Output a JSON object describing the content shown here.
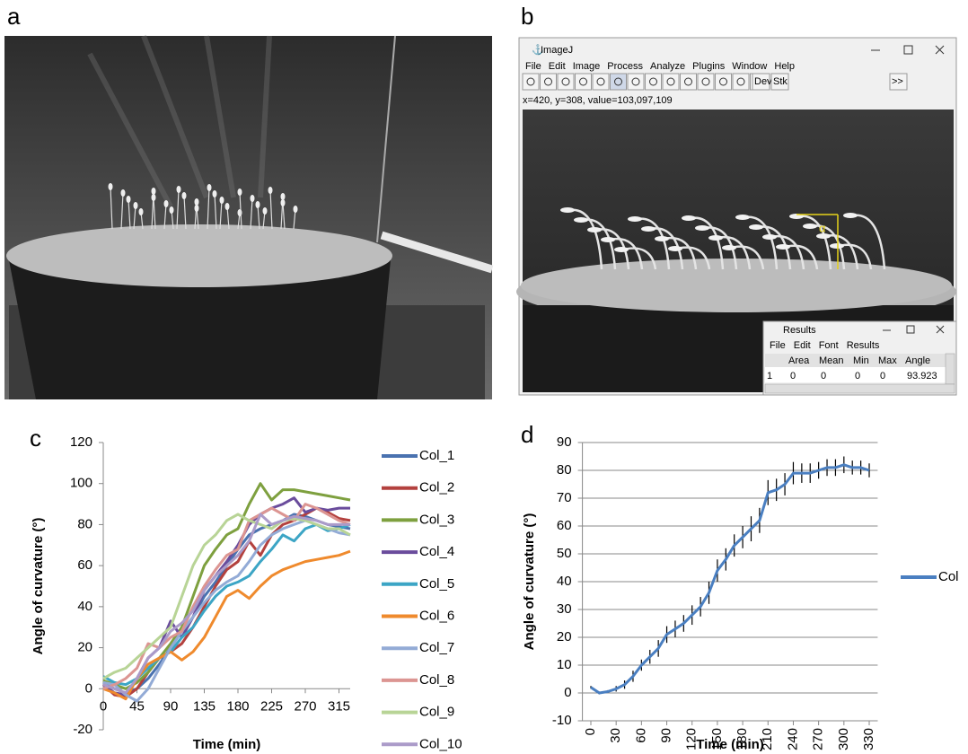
{
  "panel_labels": [
    "a",
    "b",
    "c",
    "d"
  ],
  "imagej": {
    "title": "ImageJ",
    "menu": [
      "File",
      "Edit",
      "Image",
      "Process",
      "Analyze",
      "Plugins",
      "Window",
      "Help"
    ],
    "toolbar": [
      "Dev",
      "Stk",
      ">>"
    ],
    "status": "x=420, y=308, value=103,097,109",
    "angle_label": "α",
    "results": {
      "title": "Results",
      "menu": [
        "File",
        "Edit",
        "Font",
        "Results"
      ],
      "columns": [
        "Area",
        "Mean",
        "Min",
        "Max",
        "Angle"
      ],
      "rows": [
        [
          "1",
          "0",
          "0",
          "0",
          "0",
          "93.923"
        ]
      ]
    }
  },
  "chart_data": [
    {
      "type": "line",
      "x_label": "Time (min)",
      "y_label": "Angle of curvature (°)",
      "x": [
        0,
        15,
        30,
        45,
        60,
        75,
        90,
        105,
        120,
        135,
        150,
        165,
        180,
        195,
        210,
        225,
        240,
        255,
        270,
        285,
        300,
        315,
        330
      ],
      "xlim": [
        0,
        330
      ],
      "ylim": [
        -20,
        120
      ],
      "xticks": [
        0,
        45,
        90,
        135,
        180,
        225,
        270,
        315
      ],
      "yticks": [
        -20,
        0,
        20,
        40,
        60,
        80,
        100,
        120
      ],
      "grid": false,
      "legend": "right",
      "series": [
        {
          "name": "Col_1",
          "color": "#4a72b0",
          "values": [
            3,
            0,
            -2,
            0,
            5,
            12,
            20,
            28,
            35,
            45,
            52,
            60,
            68,
            75,
            78,
            80,
            82,
            85,
            84,
            82,
            80,
            79,
            78
          ]
        },
        {
          "name": "Col_2",
          "color": "#b3413e",
          "values": [
            2,
            -3,
            -4,
            0,
            8,
            15,
            18,
            22,
            30,
            40,
            50,
            58,
            62,
            72,
            65,
            75,
            80,
            82,
            85,
            88,
            86,
            83,
            82
          ]
        },
        {
          "name": "Col_3",
          "color": "#7ea03f",
          "values": [
            4,
            2,
            0,
            3,
            8,
            15,
            22,
            30,
            45,
            60,
            68,
            75,
            78,
            90,
            100,
            92,
            97,
            97,
            96,
            95,
            94,
            93,
            92
          ]
        },
        {
          "name": "Col_4",
          "color": "#6a4c9c",
          "values": [
            2,
            -2,
            -3,
            5,
            15,
            20,
            33,
            25,
            35,
            48,
            55,
            62,
            70,
            80,
            85,
            88,
            90,
            93,
            86,
            88,
            87,
            88,
            88
          ]
        },
        {
          "name": "Col_5",
          "color": "#3ca5c5",
          "values": [
            6,
            3,
            2,
            5,
            10,
            15,
            18,
            25,
            30,
            38,
            45,
            50,
            52,
            55,
            62,
            68,
            75,
            72,
            78,
            80,
            77,
            78,
            80
          ]
        },
        {
          "name": "Col_6",
          "color": "#ef8a2d",
          "values": [
            0,
            -2,
            -5,
            5,
            12,
            15,
            18,
            14,
            18,
            25,
            35,
            45,
            48,
            44,
            50,
            55,
            58,
            60,
            62,
            63,
            64,
            65,
            67
          ]
        },
        {
          "name": "Col_7",
          "color": "#93abd6",
          "values": [
            3,
            2,
            -3,
            -6,
            0,
            10,
            20,
            28,
            35,
            42,
            48,
            52,
            55,
            62,
            70,
            75,
            78,
            80,
            82,
            80,
            78,
            76,
            75
          ]
        },
        {
          "name": "Col_8",
          "color": "#dc9592",
          "values": [
            0,
            2,
            5,
            10,
            22,
            20,
            25,
            28,
            40,
            50,
            58,
            65,
            68,
            82,
            85,
            88,
            85,
            82,
            90,
            88,
            85,
            82,
            80
          ]
        },
        {
          "name": "Col_9",
          "color": "#b8d496",
          "values": [
            5,
            8,
            10,
            15,
            20,
            25,
            30,
            45,
            60,
            70,
            75,
            82,
            85,
            82,
            80,
            78,
            82,
            83,
            82,
            80,
            78,
            78,
            75
          ]
        },
        {
          "name": "Col_10",
          "color": "#ab9bc9",
          "values": [
            2,
            0,
            -2,
            5,
            15,
            20,
            28,
            32,
            38,
            48,
            55,
            60,
            65,
            72,
            85,
            80,
            82,
            84,
            83,
            82,
            80,
            80,
            80
          ]
        }
      ]
    },
    {
      "type": "line",
      "x_label": "Time (min)",
      "y_label": "Angle of curvature (°)",
      "x": [
        0,
        10,
        20,
        30,
        40,
        50,
        60,
        70,
        80,
        90,
        100,
        110,
        120,
        130,
        140,
        150,
        160,
        170,
        180,
        190,
        200,
        210,
        220,
        230,
        240,
        250,
        260,
        270,
        280,
        290,
        300,
        310,
        320,
        330
      ],
      "xlim": [
        -10,
        340
      ],
      "ylim": [
        -10,
        90
      ],
      "xticks": [
        0,
        30,
        60,
        90,
        120,
        150,
        180,
        210,
        240,
        270,
        300,
        330
      ],
      "yticks": [
        -10,
        0,
        10,
        20,
        30,
        40,
        50,
        60,
        70,
        80,
        90
      ],
      "xtick_rotation": -90,
      "grid": true,
      "legend": "right",
      "series": [
        {
          "name": "Col",
          "color": "#4a7fc1",
          "values": [
            2,
            0,
            0.5,
            1.5,
            3,
            6,
            10,
            13,
            16,
            21,
            23,
            25,
            28,
            31,
            36,
            44,
            48,
            53,
            56,
            59,
            62,
            72,
            73,
            75,
            79,
            79,
            79,
            80,
            81,
            81,
            82,
            81,
            81,
            80
          ],
          "errors": [
            0.5,
            0.5,
            0.5,
            1,
            1.5,
            2,
            2,
            2.5,
            3,
            3,
            3,
            3,
            3.5,
            3.5,
            4,
            4,
            4,
            4,
            4,
            4.5,
            4.5,
            4.5,
            4,
            4,
            4,
            3.5,
            3.5,
            3,
            3,
            3,
            3,
            2.5,
            2.5,
            2.5
          ]
        }
      ]
    }
  ]
}
